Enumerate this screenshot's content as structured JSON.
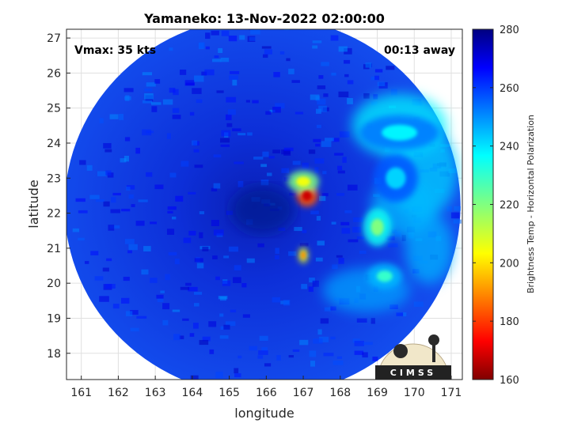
{
  "chart_data": {
    "type": "heatmap",
    "title": "Yamaneko: 13-Nov-2022 02:00:00",
    "annotation_left": "Vmax: 35 kts",
    "annotation_right": "00:13 away",
    "xlabel": "longitude",
    "ylabel": "latitude",
    "xlim": [
      160.6,
      171.3
    ],
    "ylim": [
      17.25,
      27.25
    ],
    "xticks": [
      161,
      162,
      163,
      164,
      165,
      166,
      167,
      168,
      169,
      170,
      171
    ],
    "yticks": [
      18,
      19,
      20,
      21,
      22,
      23,
      24,
      25,
      26,
      27
    ],
    "grid": true,
    "swath_center": [
      165.9,
      22.2
    ],
    "colorbar": {
      "label": "Brightness Temp - Horizontal Polarization",
      "range": [
        160,
        280
      ],
      "ticks": [
        160,
        180,
        200,
        220,
        240,
        260,
        280
      ],
      "colormap": "jet"
    },
    "logo": "CIMSS",
    "features": [
      {
        "name": "cold core",
        "lon": 167.1,
        "lat": 22.5,
        "value": 168
      },
      {
        "name": "convective band",
        "lon": 167.0,
        "lat": 22.9,
        "value": 205
      },
      {
        "name": "eastern band",
        "lon": 169.0,
        "lat": 21.6,
        "value": 220
      },
      {
        "name": "south cell",
        "lon": 167.0,
        "lat": 20.8,
        "value": 190
      },
      {
        "name": "southeast band",
        "lon": 169.2,
        "lat": 20.2,
        "value": 230
      },
      {
        "name": "northeast cloud",
        "lon": 169.6,
        "lat": 24.3,
        "value": 238
      },
      {
        "name": "outer ring",
        "lon": 169.5,
        "lat": 23.0,
        "value": 242
      }
    ]
  }
}
